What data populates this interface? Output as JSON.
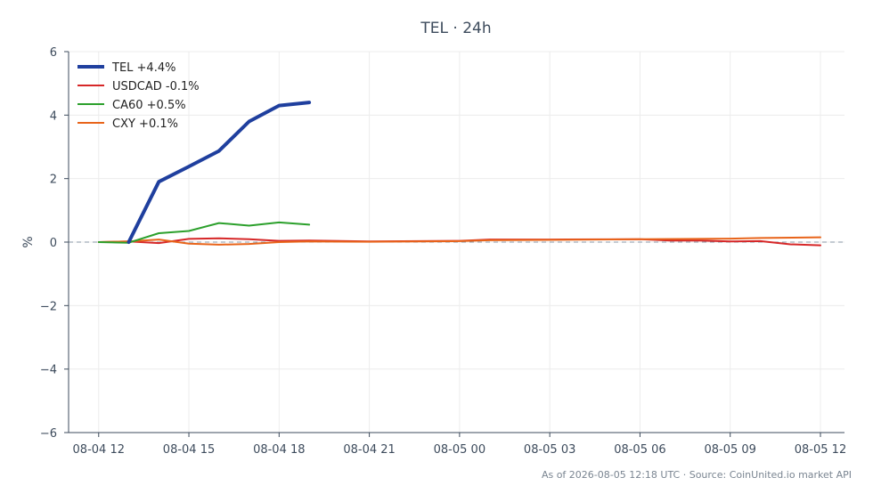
{
  "chart_data": {
    "type": "line",
    "title": "TEL · 24h",
    "ylabel": "%",
    "xlabel": "",
    "ylim": [
      -6,
      6
    ],
    "yticks": [
      6,
      4,
      2,
      0,
      -2,
      -4,
      -6
    ],
    "ytick_labels": [
      "6",
      "4",
      "2",
      "0",
      "−2",
      "−4",
      "−6"
    ],
    "xlim": [
      11.0,
      36.8
    ],
    "xticks": [
      12,
      15,
      18,
      21,
      24,
      27,
      30,
      33,
      36
    ],
    "xtick_labels": [
      "08-04 12",
      "08-04 15",
      "08-04 18",
      "08-04 21",
      "08-05 00",
      "08-05 03",
      "08-05 06",
      "08-05 09",
      "08-05 12"
    ],
    "grid": true,
    "zero_line": true,
    "legend_position": "top-left",
    "series": [
      {
        "name": "TEL +4.4%",
        "color": "#1f3f9e",
        "width": 4,
        "x": [
          13,
          14,
          15,
          16,
          17,
          18,
          19
        ],
        "y": [
          0.0,
          1.9,
          2.38,
          2.87,
          3.8,
          4.3,
          4.4
        ]
      },
      {
        "name": "USDCAD -0.1%",
        "color": "#d62728",
        "width": 2,
        "x": [
          12,
          13,
          14,
          15,
          16,
          17,
          18,
          19,
          21,
          24,
          25,
          27,
          30,
          31,
          32,
          33,
          34,
          35,
          36
        ],
        "y": [
          0.0,
          0.02,
          -0.03,
          0.1,
          0.12,
          0.09,
          0.04,
          0.05,
          0.02,
          0.04,
          0.08,
          0.08,
          0.09,
          0.05,
          0.05,
          0.02,
          0.03,
          -0.07,
          -0.1
        ]
      },
      {
        "name": "CA60 +0.5%",
        "color": "#2ca02c",
        "width": 2,
        "x": [
          12,
          13,
          14,
          15,
          16,
          17,
          18,
          19
        ],
        "y": [
          0.0,
          -0.02,
          0.28,
          0.35,
          0.6,
          0.52,
          0.62,
          0.55
        ]
      },
      {
        "name": "CXY +0.1%",
        "color": "#e8641a",
        "width": 2,
        "x": [
          12,
          13,
          14,
          15,
          16,
          17,
          18,
          19,
          21,
          24,
          25,
          27,
          30,
          33,
          34,
          36
        ],
        "y": [
          0.0,
          0.02,
          0.08,
          -0.05,
          -0.08,
          -0.06,
          0.0,
          0.02,
          0.01,
          0.03,
          0.06,
          0.07,
          0.09,
          0.11,
          0.13,
          0.15
        ]
      }
    ]
  },
  "footer": {
    "source": "As of 2026-08-05 12:18 UTC · Source: CoinUnited.io market API"
  }
}
